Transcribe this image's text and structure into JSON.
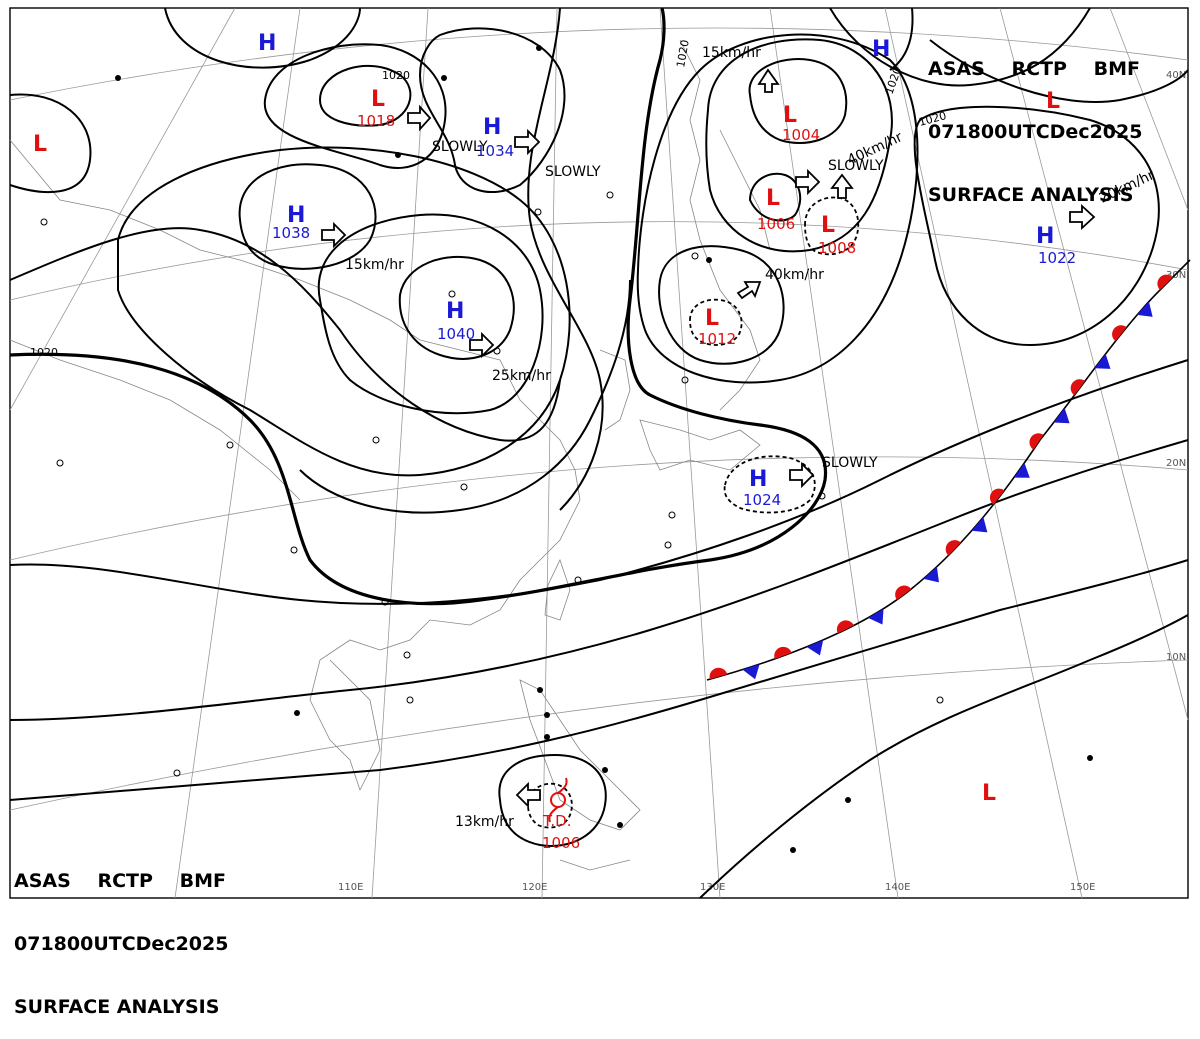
{
  "title": {
    "line1": [
      "ASAS",
      "RCTP",
      "BMF"
    ],
    "line2": [
      "071800UTC",
      "Dec",
      "2025"
    ],
    "line3": "SURFACE ANALYSIS"
  },
  "longitudes": [
    "110E",
    "120E",
    "130E",
    "140E",
    "150E"
  ],
  "latitudes": [
    "40N",
    "30N",
    "20N",
    "10N"
  ],
  "isobar_labels": [
    "1020",
    "1020",
    "1020",
    "1020",
    "1020"
  ],
  "pressure_centers": [
    {
      "type": "H",
      "value": ""
    },
    {
      "type": "H",
      "value": "1038"
    },
    {
      "type": "H",
      "value": "1034"
    },
    {
      "type": "H",
      "value": "1040"
    },
    {
      "type": "H",
      "value": ""
    },
    {
      "type": "H",
      "value": "1022"
    },
    {
      "type": "H",
      "value": "1024"
    },
    {
      "type": "L",
      "value": ""
    },
    {
      "type": "L",
      "value": "1018"
    },
    {
      "type": "L",
      "value": "1004"
    },
    {
      "type": "L",
      "value": "1006"
    },
    {
      "type": "L",
      "value": "1008"
    },
    {
      "type": "L",
      "value": "1012"
    },
    {
      "type": "L",
      "value": ""
    },
    {
      "type": "L",
      "value": ""
    },
    {
      "type": "L",
      "value": "1006"
    }
  ],
  "td_label": "T.D.",
  "movement_labels": [
    "SLOWLY",
    "SLOWLY",
    "15km/hr",
    "25km/hr",
    "15km/hr",
    "SLOWLY",
    "40km/hr",
    "40km/hr",
    "20km/hr",
    "SLOWLY",
    "13km/hr"
  ],
  "colors": {
    "high": "#1a1ad6",
    "low": "#e01010",
    "warm_front": "#e01010",
    "cold_front": "#1a1ad6"
  }
}
